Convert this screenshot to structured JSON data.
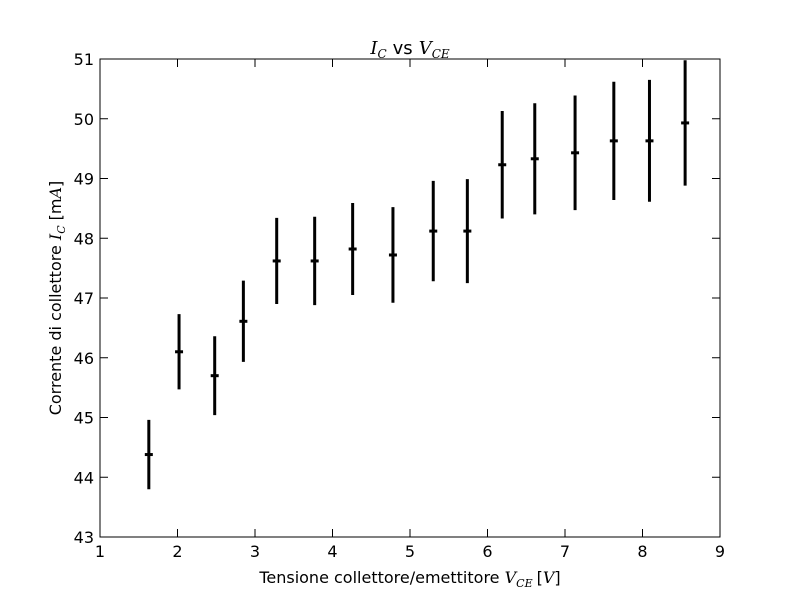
{
  "chart_data": {
    "type": "scatter",
    "title": {
      "main_sym": "I",
      "main_sub": "C",
      "vs": "vs",
      "sec_sym": "V",
      "sec_sub": "CE"
    },
    "xlabel": {
      "text": "Tensione collettore/emettitore ",
      "sym": "V",
      "sub": "CE",
      "unit_open": "[",
      "unit": "V",
      "unit_close": "]"
    },
    "ylabel": {
      "text": "Corrente di collettore ",
      "sym": "I",
      "sub": "C",
      "unit_open": "[m",
      "unit": "A",
      "unit_close": "]"
    },
    "xlim": [
      1,
      9
    ],
    "ylim": [
      43,
      51
    ],
    "xticks": [
      1,
      2,
      3,
      4,
      5,
      6,
      7,
      8,
      9
    ],
    "yticks": [
      43,
      44,
      45,
      46,
      47,
      48,
      49,
      50,
      51
    ],
    "grid": false,
    "marker_color": "#000000",
    "points": [
      {
        "x": 1.63,
        "y": 44.38,
        "yerr": 0.58
      },
      {
        "x": 2.02,
        "y": 46.1,
        "yerr": 0.63
      },
      {
        "x": 2.48,
        "y": 45.7,
        "yerr": 0.66
      },
      {
        "x": 2.85,
        "y": 46.61,
        "yerr": 0.68
      },
      {
        "x": 3.28,
        "y": 47.62,
        "yerr": 0.72
      },
      {
        "x": 3.77,
        "y": 47.62,
        "yerr": 0.74
      },
      {
        "x": 4.26,
        "y": 47.82,
        "yerr": 0.77
      },
      {
        "x": 4.78,
        "y": 47.72,
        "yerr": 0.8
      },
      {
        "x": 5.3,
        "y": 48.12,
        "yerr": 0.84
      },
      {
        "x": 5.74,
        "y": 48.12,
        "yerr": 0.87
      },
      {
        "x": 6.19,
        "y": 49.23,
        "yerr": 0.9
      },
      {
        "x": 6.61,
        "y": 49.33,
        "yerr": 0.93
      },
      {
        "x": 7.13,
        "y": 49.43,
        "yerr": 0.96
      },
      {
        "x": 7.63,
        "y": 49.63,
        "yerr": 0.99
      },
      {
        "x": 8.09,
        "y": 49.63,
        "yerr": 1.02
      },
      {
        "x": 8.55,
        "y": 49.93,
        "yerr": 1.05
      }
    ]
  }
}
